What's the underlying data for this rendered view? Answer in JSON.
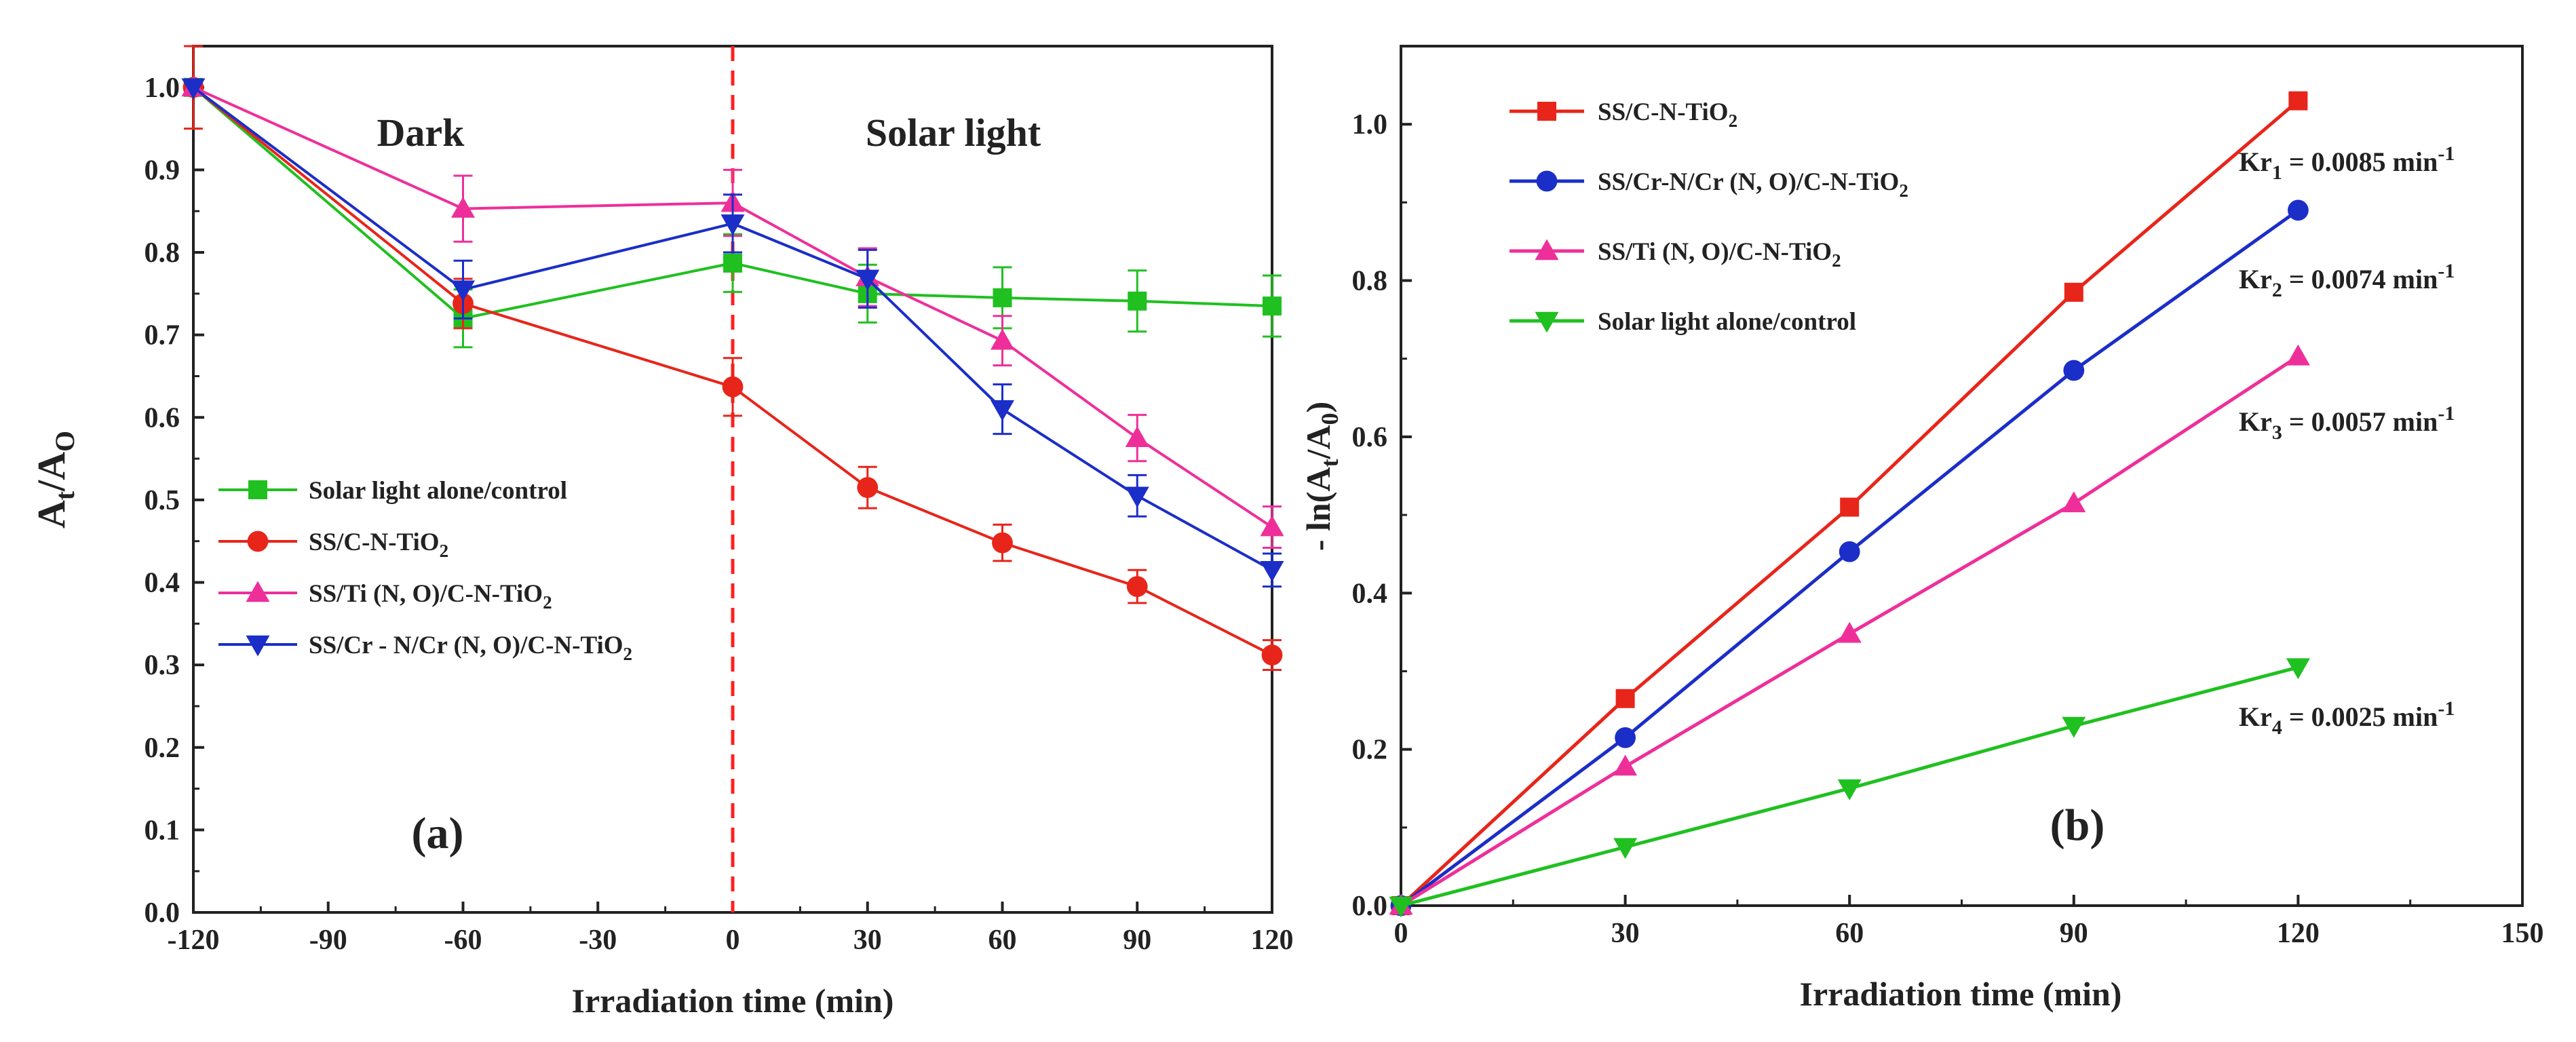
{
  "chart_data": [
    {
      "type": "line",
      "panel_label": "(a)",
      "xlabel": "Irradiation time (min)",
      "ylabel": {
        "base": "A",
        "sub1": "t",
        "mid": "/A",
        "sub2": "O"
      },
      "xlim": [
        -120,
        120
      ],
      "ylim": [
        0.0,
        1.05
      ],
      "xticks": [
        "-120",
        "-90",
        "-60",
        "-30",
        "0",
        "30",
        "60",
        "90",
        "120"
      ],
      "yticks": [
        "0.0",
        "0.1",
        "0.2",
        "0.3",
        "0.4",
        "0.5",
        "0.6",
        "0.7",
        "0.8",
        "0.9",
        "1.0"
      ],
      "annotations": {
        "dark": "Dark",
        "solar": "Solar light"
      },
      "divider_x": 0,
      "series": [
        {
          "name": "Solar light alone/control",
          "label_parts": [
            [
              "Solar light alone/control",
              ""
            ]
          ],
          "color": "#20c020",
          "marker": "square",
          "x": [
            -120,
            -60,
            0,
            30,
            60,
            90,
            120
          ],
          "y": [
            1.0,
            0.72,
            0.787,
            0.75,
            0.745,
            0.741,
            0.735
          ],
          "err": [
            0.0,
            0.035,
            0.035,
            0.035,
            0.037,
            0.037,
            0.037
          ]
        },
        {
          "name": "SS/C-N-TiO2",
          "label_parts": [
            [
              "SS/C-N-TiO",
              ""
            ],
            [
              "2",
              "sub"
            ]
          ],
          "color": "#e8251a",
          "marker": "circle",
          "x": [
            -120,
            -60,
            0,
            30,
            60,
            90,
            120
          ],
          "y": [
            1.0,
            0.738,
            0.637,
            0.515,
            0.448,
            0.395,
            0.312
          ],
          "err": [
            0.05,
            0.03,
            0.035,
            0.025,
            0.022,
            0.02,
            0.018
          ]
        },
        {
          "name": "SS/Ti (N, O)/C-N-TiO2",
          "label_parts": [
            [
              "SS/Ti (N, O)/C-N-TiO",
              ""
            ],
            [
              "2",
              "sub"
            ]
          ],
          "color": "#ee2f9a",
          "marker": "triangle",
          "x": [
            -120,
            -60,
            0,
            30,
            60,
            90,
            120
          ],
          "y": [
            1.0,
            0.853,
            0.86,
            0.77,
            0.693,
            0.575,
            0.467
          ],
          "err": [
            0.0,
            0.04,
            0.04,
            0.035,
            0.03,
            0.028,
            0.025
          ]
        },
        {
          "name": "SS/Cr - N/Cr (N, O)/C-N-TiO2",
          "label_parts": [
            [
              "SS/Cr - N/Cr (N, O)/C-N-TiO",
              ""
            ],
            [
              "2",
              "sub"
            ]
          ],
          "color": "#1b2ec8",
          "marker": "triangle-down",
          "x": [
            -120,
            -60,
            0,
            30,
            60,
            90,
            120
          ],
          "y": [
            1.0,
            0.755,
            0.835,
            0.768,
            0.61,
            0.505,
            0.415
          ],
          "err": [
            0.0,
            0.035,
            0.035,
            0.035,
            0.03,
            0.025,
            0.02
          ]
        }
      ]
    },
    {
      "type": "line",
      "panel_label": "(b)",
      "xlabel": "Irradiation time (min)",
      "ylabel": {
        "base": "- ln(A",
        "sub1": "t",
        "mid": "/A",
        "sub2": "0",
        "end": ")"
      },
      "xlim": [
        0,
        150
      ],
      "ylim": [
        0.0,
        1.1
      ],
      "xticks": [
        "0",
        "30",
        "60",
        "90",
        "120",
        "150"
      ],
      "yticks": [
        "0.0",
        "0.2",
        "0.4",
        "0.6",
        "0.8",
        "1.0"
      ],
      "series": [
        {
          "name": "SS/C-N-TiO2",
          "label_parts": [
            [
              "SS/C-N-TiO",
              ""
            ],
            [
              "2",
              "sub"
            ]
          ],
          "color": "#e8251a",
          "marker": "square",
          "x": [
            0,
            30,
            60,
            90,
            120
          ],
          "y": [
            0.0,
            0.265,
            0.51,
            0.785,
            1.03
          ],
          "rate": {
            "pre": "Kr",
            "sub": "1",
            "mid": " = 0.0085 min",
            "sup": "-1"
          }
        },
        {
          "name": "SS/Cr-N/Cr (N, O)/C-N-TiO2",
          "label_parts": [
            [
              "SS/Cr-N/Cr (N, O)/C-N-TiO",
              ""
            ],
            [
              "2",
              "sub"
            ]
          ],
          "color": "#1b2ec8",
          "marker": "circle",
          "x": [
            0,
            30,
            60,
            90,
            120
          ],
          "y": [
            0.0,
            0.215,
            0.453,
            0.685,
            0.89
          ],
          "rate": {
            "pre": "Kr",
            "sub": "2",
            "mid": " = 0.0074 min",
            "sup": "-1"
          }
        },
        {
          "name": "SS/Ti (N, O)/C-N-TiO2",
          "label_parts": [
            [
              "SS/Ti (N, O)/C-N-TiO",
              ""
            ],
            [
              "2",
              "sub"
            ]
          ],
          "color": "#ee2f9a",
          "marker": "triangle",
          "x": [
            0,
            30,
            60,
            90,
            120
          ],
          "y": [
            0.0,
            0.178,
            0.348,
            0.515,
            0.703
          ],
          "rate": {
            "pre": "Kr",
            "sub": "3",
            "mid": " = 0.0057 min",
            "sup": "-1"
          }
        },
        {
          "name": "Solar light alone/control",
          "label_parts": [
            [
              "Solar light alone/control",
              ""
            ]
          ],
          "color": "#20c020",
          "marker": "triangle-down",
          "x": [
            0,
            30,
            60,
            90,
            120
          ],
          "y": [
            0.0,
            0.075,
            0.15,
            0.23,
            0.305
          ],
          "rate": {
            "pre": "Kr",
            "sub": "4",
            "mid": " = 0.0025 min",
            "sup": "-1"
          }
        }
      ]
    }
  ]
}
